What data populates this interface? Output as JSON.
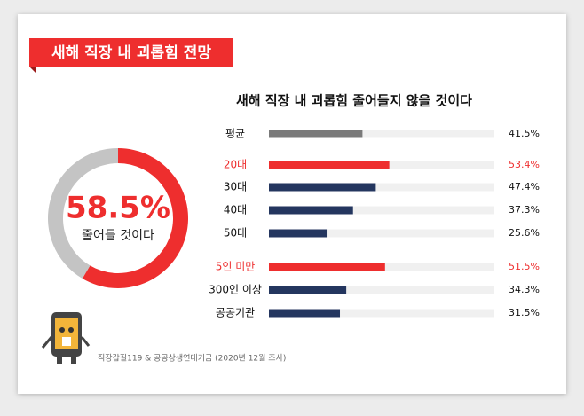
{
  "header": {
    "title": "새해 직장 내 괴롭힘 전망"
  },
  "source": "직장갑질119 & 공공상생연대기금 (2020년 12월 조사)",
  "chart_data": [
    {
      "type": "pie",
      "categories": [
        "줄어들 것이다",
        null
      ],
      "values": [
        58.5,
        41.5
      ],
      "value_labels": [
        "58.5%",
        null
      ],
      "colors": [
        "#ee2e2e",
        "#c4c4c4"
      ]
    },
    {
      "type": "bar",
      "title": "새해 직장 내 괴롭힘 줄어들지 않을 것이다",
      "categories": [
        "평균",
        "20대",
        "30대",
        "40대",
        "50대",
        "5인 미만",
        "300인 이상",
        "공공기관"
      ],
      "values": [
        41.5,
        53.4,
        47.4,
        37.3,
        25.6,
        51.5,
        34.3,
        31.5
      ],
      "value_labels": [
        "41.5%",
        "53.4%",
        "47.4%",
        "37.3%",
        "25.6%",
        "51.5%",
        "34.3%",
        "31.5%"
      ],
      "colors": [
        "#7a7a7a",
        "#ee2e2e",
        "#24365f",
        "#24365f",
        "#24365f",
        "#ee2e2e",
        "#24365f",
        "#24365f"
      ],
      "xlim": [
        0,
        100
      ]
    }
  ]
}
